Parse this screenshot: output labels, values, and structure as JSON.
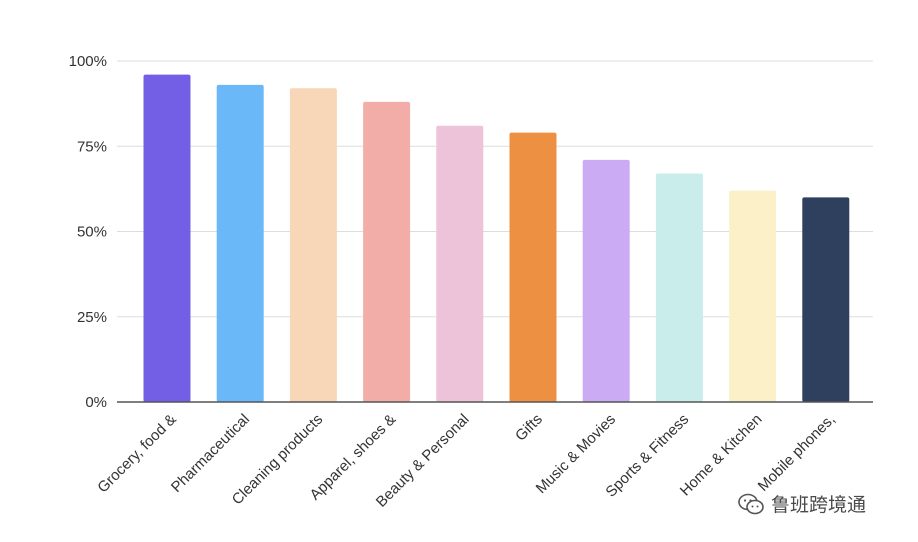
{
  "chart_data": {
    "type": "bar",
    "categories": [
      "Grocery, food &",
      "Pharmaceutical",
      "Cleaning products",
      "Apparel, shoes &",
      "Beauty & Personal",
      "Gifts",
      "Music & Movies",
      "Sports & Fitness",
      "Home & Kitchen",
      "Mobile phones,"
    ],
    "values": [
      96,
      93,
      92,
      88,
      81,
      79,
      71,
      67,
      62,
      60
    ],
    "colors": [
      "#735FE5",
      "#6BB8F8",
      "#F8D6B8",
      "#F3ADA8",
      "#EDC3D9",
      "#EE9042",
      "#CBACF4",
      "#C8EDEB",
      "#FBF0C8",
      "#2F405F"
    ],
    "ylim": [
      0,
      100
    ],
    "yticks": [
      0,
      25,
      50,
      75,
      100
    ],
    "ytick_labels": [
      "0%",
      "25%",
      "50%",
      "75%",
      "100%"
    ],
    "grid": true,
    "title": "",
    "xlabel": "",
    "ylabel": ""
  },
  "watermark": {
    "text": "鲁班跨境通",
    "icon": "wechat-icon"
  }
}
